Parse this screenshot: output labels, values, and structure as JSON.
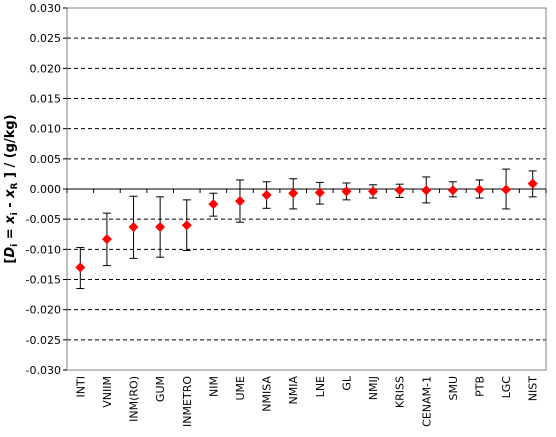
{
  "chart_data": {
    "type": "scatter",
    "ylabel": {
      "open": "[",
      "D": "D",
      "i1": "i",
      "eq": " = ",
      "x": "x",
      "i2": "i",
      "minus": " - ",
      "xR": "x",
      "R": "R",
      "close": " ]  / (g/kg)"
    },
    "ylim": [
      -0.03,
      0.03
    ],
    "ytick_step": 0.005,
    "ytick_labels": [
      "0.030",
      "0.025",
      "0.020",
      "0.015",
      "0.010",
      "0.005",
      "0.000",
      "-0.005",
      "-0.010",
      "-0.015",
      "-0.020",
      "-0.025",
      "-0.030"
    ],
    "grid": "horizontal dashed",
    "marker_color": "#ff0000",
    "categories": [
      "INTI",
      "VNIIM",
      "INM(RO)",
      "GUM",
      "INMETRO",
      "NIM",
      "UME",
      "NMISA",
      "NMIA",
      "LNE",
      "GL",
      "NMIJ",
      "KRISS",
      "CENAM-1",
      "SMU",
      "PTB",
      "LGC",
      "NIST"
    ],
    "values": [
      -0.013,
      -0.0083,
      -0.0063,
      -0.0063,
      -0.006,
      -0.0025,
      -0.002,
      -0.001,
      -0.0007,
      -0.0006,
      -0.0004,
      -0.0004,
      -0.0002,
      -0.0002,
      -0.0002,
      -0.0001,
      -0.0001,
      0.0009
    ],
    "err_low": [
      -0.0165,
      -0.0127,
      -0.0115,
      -0.0113,
      -0.0102,
      -0.0045,
      -0.0055,
      -0.0032,
      -0.0033,
      -0.0025,
      -0.0018,
      -0.0015,
      -0.0014,
      -0.0023,
      -0.0013,
      -0.0015,
      -0.0033,
      -0.0013
    ],
    "err_high": [
      -0.0097,
      -0.004,
      -0.0012,
      -0.0013,
      -0.0018,
      -0.0007,
      0.0015,
      0.0012,
      0.0017,
      0.0011,
      0.001,
      0.0007,
      0.0008,
      0.002,
      0.0012,
      0.0015,
      0.0033,
      0.003
    ]
  }
}
